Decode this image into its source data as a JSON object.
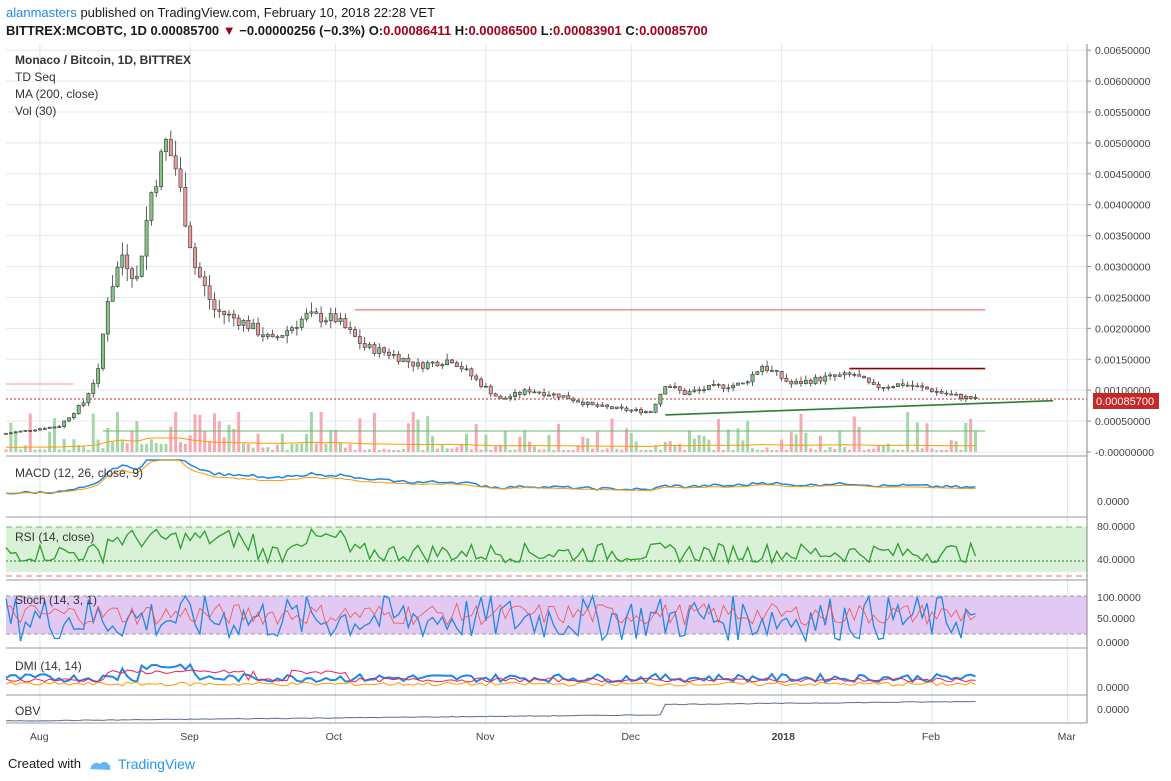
{
  "header": {
    "author": "alanmasters",
    "published_text": "published on TradingView.com, February 10, 2018 22:28 VET",
    "symbol": "BITTREX:MCOBTC, 1D",
    "last": "0.00085700",
    "change": "−0.00000256 (−0.3%)",
    "o_label": "O:",
    "o": "0.00086411",
    "h_label": "H:",
    "h": "0.00086500",
    "l_label": "L:",
    "l": "0.00083901",
    "c_label": "C:",
    "c": "0.00085700"
  },
  "legend": {
    "title": "Monaco / Bitcoin, 1D, BITTREX",
    "td_seq": "TD Seq",
    "ma": "MA (200, close)",
    "vol": "Vol (30)"
  },
  "panes": {
    "macd_label": "MACD (12, 26, close, 9)",
    "rsi_label": "RSI (14, close)",
    "stoch_label": "Stoch (14, 3, 1)",
    "dmi_label": "DMI (14, 14)",
    "obv_label": "OBV"
  },
  "footer": {
    "created_with": "Created with",
    "brand": "TradingView"
  },
  "colors": {
    "up": "#2e7d32",
    "down": "#c62828",
    "up_fill": "#81c784",
    "down_fill": "#ef9a9a",
    "macd": "#1e88e5",
    "signal": "#ff9800",
    "rsi": "#2ca02c",
    "stoch_k": "#1e88e5",
    "stoch_d": "#ef5350",
    "dmi_plus": "#1e88e5",
    "dmi_minus": "#e91e63",
    "adx": "#ff9800",
    "obv": "#5c6f8a"
  },
  "chart_data": {
    "type": "line",
    "title": "Monaco / Bitcoin, 1D, BITTREX",
    "x_range": [
      "2017-07-25",
      "2018-03-05"
    ],
    "x_ticks": [
      "Aug",
      "Sep",
      "Oct",
      "Nov",
      "Dec",
      "2018",
      "Feb",
      "Mar"
    ],
    "y_range": [
      0,
      0.0066
    ],
    "y_ticks": [
      "0.00650000",
      "0.00600000",
      "0.00550000",
      "0.00500000",
      "0.00450000",
      "0.00400000",
      "0.00350000",
      "0.00300000",
      "0.00250000",
      "0.00200000",
      "0.00150000",
      "0.00100000",
      "0.00050000",
      "-0.00000000"
    ],
    "last_price_label": "0.00085700",
    "series": [
      {
        "values": [
          [
            "2017-07-25",
            0.0003
          ],
          [
            "2017-08-01",
            0.00038
          ],
          [
            "2017-08-05",
            0.00042
          ],
          [
            "2017-08-10",
            0.0008
          ],
          [
            "2017-08-13",
            0.0013
          ],
          [
            "2017-08-15",
            0.0025
          ],
          [
            "2017-08-18",
            0.0032
          ],
          [
            "2017-08-21",
            0.0028
          ],
          [
            "2017-08-24",
            0.0042
          ],
          [
            "2017-08-27",
            0.005
          ],
          [
            "2017-08-29",
            0.0046
          ],
          [
            "2017-09-02",
            0.003
          ],
          [
            "2017-09-06",
            0.0023
          ],
          [
            "2017-09-12",
            0.0021
          ],
          [
            "2017-09-18",
            0.0018
          ],
          [
            "2017-09-25",
            0.0022
          ],
          [
            "2017-10-01",
            0.00215
          ],
          [
            "2017-10-07",
            0.0017
          ],
          [
            "2017-10-12",
            0.0016
          ],
          [
            "2017-10-18",
            0.0014
          ],
          [
            "2017-10-25",
            0.0015
          ],
          [
            "2017-10-31",
            0.0011
          ],
          [
            "2017-11-04",
            0.00085
          ],
          [
            "2017-11-10",
            0.001
          ],
          [
            "2017-11-17",
            0.0009
          ],
          [
            "2017-11-23",
            0.00075
          ],
          [
            "2017-11-30",
            0.00068
          ],
          [
            "2017-12-05",
            0.00065
          ],
          [
            "2017-12-08",
            0.0011
          ],
          [
            "2017-12-12",
            0.00095
          ],
          [
            "2017-12-18",
            0.00105
          ],
          [
            "2017-12-24",
            0.0011
          ],
          [
            "2017-12-28",
            0.0014
          ],
          [
            "2018-01-03",
            0.0011
          ],
          [
            "2018-01-10",
            0.0012
          ],
          [
            "2018-01-16",
            0.00125
          ],
          [
            "2018-01-20",
            0.00105
          ],
          [
            "2018-01-26",
            0.0011
          ],
          [
            "2018-02-01",
            0.001
          ],
          [
            "2018-02-05",
            0.00092
          ],
          [
            "2018-02-10",
            0.000857
          ]
        ]
      }
    ],
    "trendlines": [
      {
        "name": "",
        "from": [
          "2017-12-08",
          0.0006
        ],
        "to": [
          "2018-02-26",
          0.00083
        ]
      }
    ],
    "levels": [
      {
        "value": 0.0023,
        "from": "2017-10-05",
        "to": "2018-02-12"
      },
      {
        "value": 0.00135,
        "from": "2018-01-15",
        "to": "2018-02-12"
      },
      {
        "value": 0.0011,
        "from": "2017-07-25",
        "to": "2017-08-08"
      }
    ],
    "grid": true
  }
}
